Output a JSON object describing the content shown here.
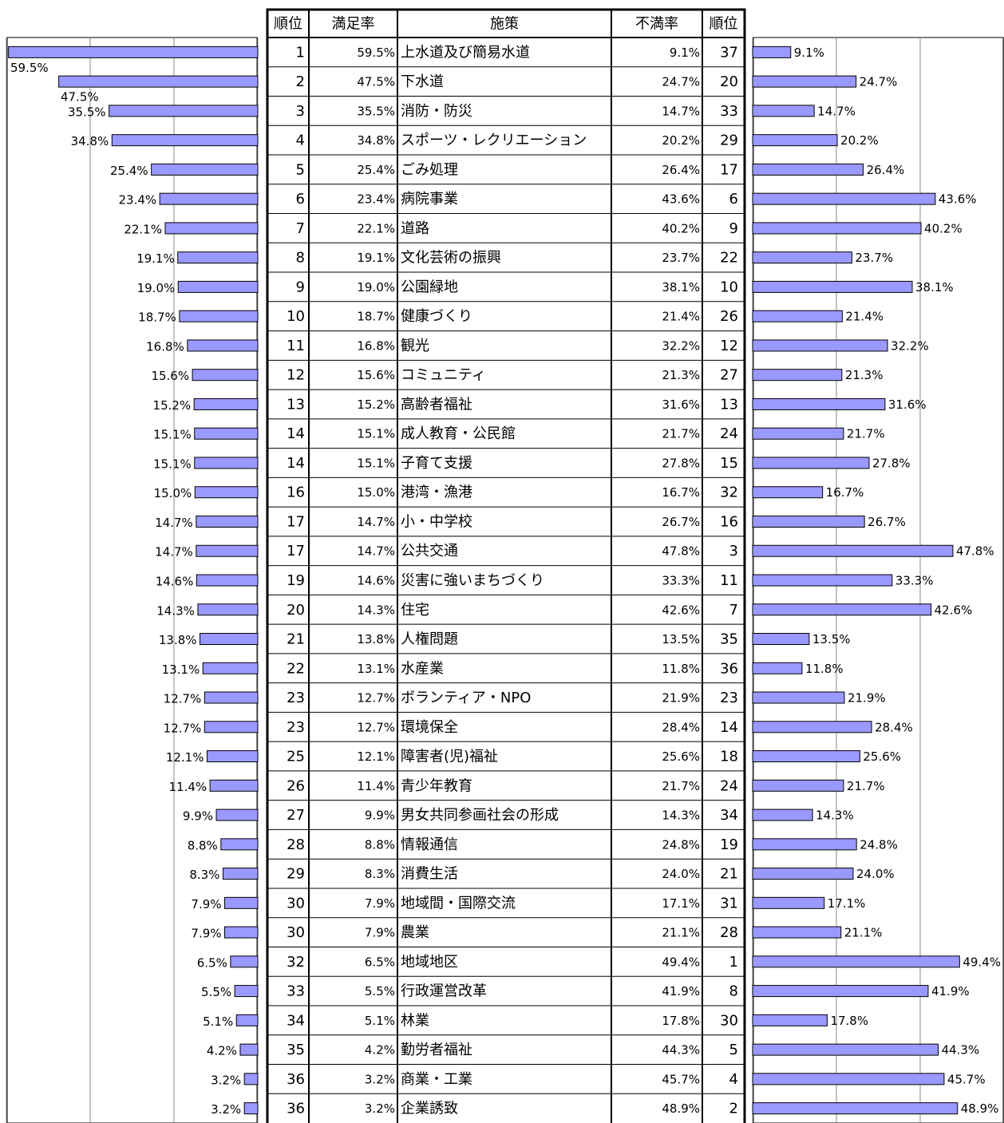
{
  "table": {
    "header": [
      "順位",
      "満足率",
      "施策",
      "不満率",
      "順位"
    ],
    "sat_rank": [
      1,
      2,
      3,
      4,
      5,
      6,
      7,
      8,
      9,
      10,
      11,
      12,
      13,
      14,
      14,
      16,
      17,
      17,
      19,
      20,
      21,
      22,
      23,
      23,
      25,
      26,
      27,
      28,
      29,
      30,
      30,
      32,
      33,
      34,
      35,
      36,
      36
    ],
    "dis_rank": [
      37,
      20,
      33,
      29,
      17,
      6,
      9,
      22,
      10,
      26,
      12,
      27,
      13,
      24,
      15,
      32,
      16,
      3,
      11,
      7,
      35,
      36,
      23,
      14,
      18,
      24,
      34,
      19,
      21,
      31,
      28,
      1,
      8,
      30,
      5,
      4,
      2
    ]
  },
  "chart_data": [
    {
      "type": "bar",
      "orientation": "horizontal",
      "direction": "left",
      "color": "#9999ff",
      "categories": [
        "上水道及び簡易水道",
        "下水道",
        "消防・防災",
        "スポーツ・レクリエーション",
        "ごみ処理",
        "病院事業",
        "道路",
        "文化芸術の振興",
        "公園緑地",
        "健康づくり",
        "観光",
        "コミュニティ",
        "高齢者福祉",
        "成人教育・公民館",
        "子育て支援",
        "港湾・漁港",
        "小・中学校",
        "公共交通",
        "災害に強いまちづくり",
        "住宅",
        "人権問題",
        "水産業",
        "ボランティア・NPO",
        "環境保全",
        "障害者(児)福祉",
        "青少年教育",
        "男女共同参画社会の形成",
        "情報通信",
        "消費生活",
        "地域間・国際交流",
        "農業",
        "地域地区",
        "行政運営改革",
        "林業",
        "勤労者福祉",
        "商業・工業",
        "企業誘致"
      ],
      "values": [
        59.5,
        47.5,
        35.5,
        34.8,
        25.4,
        23.4,
        22.1,
        19.1,
        19.0,
        18.7,
        16.8,
        15.6,
        15.2,
        15.1,
        15.1,
        15.0,
        14.7,
        14.7,
        14.6,
        14.3,
        13.8,
        13.1,
        12.7,
        12.7,
        12.1,
        11.4,
        9.9,
        8.8,
        8.3,
        7.9,
        7.9,
        6.5,
        5.5,
        5.1,
        4.2,
        3.2,
        3.2
      ],
      "value_labels": [
        "59.5%",
        "47.5%",
        "35.5%",
        "34.8%",
        "25.4%",
        "23.4%",
        "22.1%",
        "19.1%",
        "19.0%",
        "18.7%",
        "16.8%",
        "15.6%",
        "15.2%",
        "15.1%",
        "15.1%",
        "15.0%",
        "14.7%",
        "14.7%",
        "14.6%",
        "14.3%",
        "13.8%",
        "13.1%",
        "12.7%",
        "12.7%",
        "12.1%",
        "11.4%",
        "9.9%",
        "8.8%",
        "8.3%",
        "7.9%",
        "7.9%",
        "6.5%",
        "5.5%",
        "5.1%",
        "4.2%",
        "3.2%",
        "3.2%"
      ],
      "xlim": [
        0,
        60
      ],
      "xticks": [
        0,
        20,
        40,
        60
      ],
      "grid": true
    },
    {
      "type": "bar",
      "orientation": "horizontal",
      "direction": "right",
      "color": "#9999ff",
      "values": [
        9.1,
        24.7,
        14.7,
        20.2,
        26.4,
        43.6,
        40.2,
        23.7,
        38.1,
        21.4,
        32.2,
        21.3,
        31.6,
        21.7,
        27.8,
        16.7,
        26.7,
        47.8,
        33.3,
        42.6,
        13.5,
        11.8,
        21.9,
        28.4,
        25.6,
        21.7,
        14.3,
        24.8,
        24.0,
        17.1,
        21.1,
        49.4,
        41.9,
        17.8,
        44.3,
        45.7,
        48.9
      ],
      "value_labels": [
        "9.1%",
        "24.7%",
        "14.7%",
        "20.2%",
        "26.4%",
        "43.6%",
        "40.2%",
        "23.7%",
        "38.1%",
        "21.4%",
        "32.2%",
        "21.3%",
        "31.6%",
        "21.7%",
        "27.8%",
        "16.7%",
        "26.7%",
        "47.8%",
        "33.3%",
        "42.6%",
        "13.5%",
        "11.8%",
        "21.9%",
        "28.4%",
        "25.6%",
        "21.7%",
        "14.3%",
        "24.8%",
        "24.0%",
        "17.1%",
        "21.1%",
        "49.4%",
        "41.9%",
        "17.8%",
        "44.3%",
        "45.7%",
        "48.9%"
      ],
      "xlim": [
        0,
        60
      ],
      "xticks": [
        0,
        20,
        40,
        60
      ],
      "grid": true
    }
  ]
}
